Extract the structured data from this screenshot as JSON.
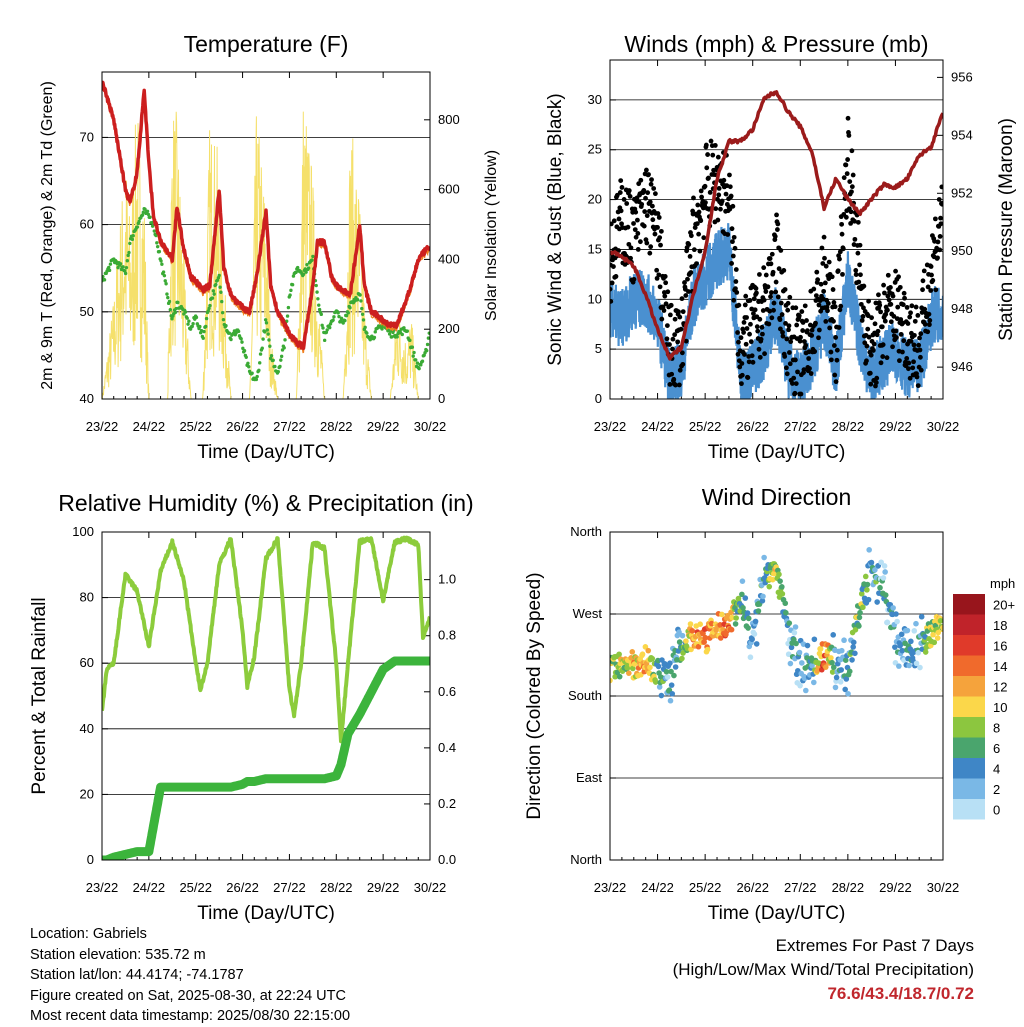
{
  "x_tick_labels": [
    "23/22",
    "24/22",
    "25/22",
    "26/22",
    "27/22",
    "28/22",
    "29/22",
    "30/22"
  ],
  "colors": {
    "temp2m": "#cc1f1f",
    "temp9m": "#f08020",
    "dewpoint": "#3aaa35",
    "solar": "#f5e06b",
    "wind": "#4a90d0",
    "gust": "#000000",
    "pressure": "#9b1b1b",
    "humidity": "#8ccc3c",
    "precip": "#3cb43c"
  },
  "chart_data": [
    {
      "id": "temperature",
      "type": "line",
      "title": "Temperature (F)",
      "xlabel": "Time (Day/UTC)",
      "ylabel": "2m & 9m T (Red, Orange) & 2m Td (Green)",
      "y2label": "Solar Insolation (Yellow)",
      "ylim": [
        40,
        77.5
      ],
      "yticks": [
        40,
        50,
        60,
        70
      ],
      "y2lim": [
        0,
        937
      ],
      "y2ticks": [
        0,
        200,
        400,
        600,
        800
      ],
      "x": [
        0,
        0.25,
        0.5,
        0.6,
        0.75,
        0.9,
        1.0,
        1.1,
        1.25,
        1.4,
        1.5,
        1.6,
        1.75,
        1.9,
        2.0,
        2.15,
        2.3,
        2.5,
        2.6,
        2.75,
        2.9,
        3.0,
        3.15,
        3.3,
        3.5,
        3.6,
        3.75,
        3.9,
        4.0,
        4.15,
        4.3,
        4.5,
        4.6,
        4.75,
        4.9,
        5.0,
        5.15,
        5.3,
        5.5,
        5.6,
        5.75,
        5.9,
        6.0,
        6.15,
        6.3,
        6.5,
        6.6,
        6.75,
        6.9,
        7.0
      ],
      "series": [
        {
          "name": "2m T",
          "values": [
            76.6,
            72,
            64,
            62.5,
            66,
            75.5,
            67,
            61,
            58,
            57,
            56,
            62,
            57,
            54,
            53.5,
            52.5,
            53,
            64,
            55,
            52,
            51,
            50.5,
            50,
            54,
            61.5,
            53,
            50,
            48.5,
            47.5,
            46.5,
            46,
            53,
            58,
            58,
            54,
            53,
            52.5,
            52,
            60,
            53,
            50,
            49.5,
            49,
            48.5,
            48.5,
            51.5,
            53,
            56,
            57,
            57.5
          ]
        },
        {
          "name": "2m Td",
          "values": [
            53.5,
            56,
            54.5,
            58,
            60,
            61.5,
            61,
            60,
            56,
            52,
            49,
            51,
            50,
            48,
            49.5,
            47,
            51,
            54,
            49,
            47,
            48,
            46,
            43,
            42,
            49,
            45,
            43,
            46.5,
            52,
            55,
            54.5,
            56,
            52,
            47,
            49,
            50,
            48.5,
            51,
            52,
            48,
            47,
            48,
            48.5,
            47.5,
            47.5,
            48,
            46,
            43.5,
            45,
            48
          ]
        },
        {
          "name": "Solar",
          "values": [
            0,
            300,
            720,
            520,
            880,
            600,
            0,
            0,
            0,
            0,
            870,
            820,
            400,
            0,
            0,
            0,
            820,
            700,
            380,
            0,
            0,
            0,
            0,
            850,
            580,
            200,
            0,
            0,
            0,
            0,
            920,
            650,
            350,
            0,
            0,
            0,
            0,
            800,
            610,
            290,
            0,
            0,
            0,
            0,
            280,
            170,
            250,
            0,
            0,
            0
          ]
        }
      ]
    },
    {
      "id": "winds",
      "type": "scatter",
      "title": "Winds (mph) & Pressure (mb)",
      "xlabel": "Time (Day/UTC)",
      "ylabel": "Sonic Wind & Gust (Blue, Black)",
      "y2label": "Station Pressure (Maroon)",
      "ylim": [
        0,
        34
      ],
      "yticks": [
        0,
        5,
        10,
        15,
        20,
        25,
        30
      ],
      "y2lim": [
        944.9,
        956.6
      ],
      "y2ticks": [
        946,
        948,
        950,
        952,
        954,
        956
      ],
      "x": [
        0,
        0.25,
        0.5,
        0.75,
        1.0,
        1.25,
        1.5,
        1.75,
        2.0,
        2.25,
        2.5,
        2.75,
        3.0,
        3.25,
        3.5,
        3.75,
        4.0,
        4.25,
        4.5,
        4.75,
        5.0,
        5.25,
        5.5,
        5.75,
        6.0,
        6.25,
        6.5,
        6.75,
        7.0
      ],
      "series": [
        {
          "name": "Sonic Wind",
          "values": [
            9,
            8,
            10,
            10,
            8,
            2,
            3,
            10,
            12,
            14,
            15,
            2,
            3,
            5,
            9,
            3,
            2,
            4,
            8,
            3,
            12,
            6,
            2,
            4,
            5,
            3,
            3,
            8,
            9
          ]
        },
        {
          "name": "Gust",
          "values": [
            14,
            18,
            16,
            20,
            16,
            5,
            6,
            16,
            21,
            22,
            20,
            5,
            7,
            9,
            14,
            6,
            4,
            7,
            12,
            6,
            25,
            12,
            4,
            8,
            9,
            7,
            5,
            13,
            19
          ]
        },
        {
          "name": "Pressure",
          "values": [
            950,
            949.8,
            949.5,
            948.5,
            947.3,
            946.3,
            946.7,
            948.5,
            950,
            952.5,
            953.8,
            953.8,
            954.2,
            955.3,
            955.5,
            954.8,
            954.3,
            953.4,
            951.5,
            952.5,
            951.8,
            951.3,
            951.8,
            952.3,
            952.2,
            952.5,
            953.3,
            953.6,
            954.8
          ]
        }
      ]
    },
    {
      "id": "humidity",
      "type": "line",
      "title": "Relative Humidity (%) & Precipitation (in)",
      "xlabel": "Time (Day/UTC)",
      "ylabel": "Percent & Total Rainfall",
      "ylim": [
        0,
        100
      ],
      "yticks": [
        0,
        20,
        40,
        60,
        80,
        100
      ],
      "y2lim": [
        0,
        1.17
      ],
      "y2ticks": [
        0.0,
        0.2,
        0.4,
        0.6,
        0.8,
        1.0
      ],
      "x": [
        0,
        0.1,
        0.25,
        0.5,
        0.75,
        1.0,
        1.25,
        1.5,
        1.75,
        2.0,
        2.1,
        2.25,
        2.5,
        2.75,
        3.0,
        3.1,
        3.25,
        3.5,
        3.75,
        4.0,
        4.1,
        4.25,
        4.5,
        4.75,
        5.0,
        5.1,
        5.25,
        5.5,
        5.75,
        6.0,
        6.25,
        6.5,
        6.75,
        6.85,
        7.0
      ],
      "series": [
        {
          "name": "Relative Humidity",
          "values": [
            45,
            58,
            60,
            87,
            82,
            65,
            88,
            97,
            85,
            60,
            52,
            60,
            90,
            98,
            70,
            53,
            62,
            92,
            98,
            52,
            44,
            60,
            97,
            95,
            60,
            36,
            60,
            97,
            98,
            79,
            97,
            98,
            96,
            68,
            74
          ]
        },
        {
          "name": "Total Precipitation",
          "values": [
            0,
            0,
            0.01,
            0.02,
            0.03,
            0.03,
            0.26,
            0.26,
            0.26,
            0.26,
            0.26,
            0.26,
            0.26,
            0.26,
            0.27,
            0.28,
            0.28,
            0.29,
            0.29,
            0.29,
            0.29,
            0.29,
            0.29,
            0.29,
            0.3,
            0.34,
            0.45,
            0.52,
            0.6,
            0.68,
            0.71,
            0.71,
            0.71,
            0.71,
            0.71
          ]
        }
      ]
    },
    {
      "id": "direction",
      "type": "scatter",
      "title": "Wind Direction",
      "xlabel": "Time (Day/UTC)",
      "ylabel": "Direction (Colored By Speed)",
      "ylim": [
        0,
        360
      ],
      "yticks": [
        0,
        90,
        180,
        270,
        360
      ],
      "ytick_labels": [
        "North",
        "East",
        "South",
        "West",
        "North"
      ],
      "x": [
        0,
        0.25,
        0.5,
        0.75,
        1.0,
        1.25,
        1.5,
        1.75,
        2.0,
        2.25,
        2.5,
        2.75,
        3.0,
        3.25,
        3.5,
        3.75,
        4.0,
        4.25,
        4.5,
        4.75,
        5.0,
        5.25,
        5.5,
        5.75,
        6.0,
        6.25,
        6.5,
        6.75,
        7.0
      ],
      "series": [
        {
          "name": "Direction",
          "values": [
            208,
            212,
            215,
            220,
            205,
            200,
            235,
            248,
            242,
            255,
            260,
            285,
            240,
            310,
            320,
            250,
            212,
            215,
            225,
            215,
            210,
            275,
            320,
            300,
            245,
            230,
            235,
            250,
            260
          ]
        },
        {
          "name": "Speed",
          "values": [
            8,
            9,
            10,
            12,
            6,
            3,
            5,
            12,
            13,
            12,
            14,
            5,
            3,
            5,
            9,
            3,
            3,
            4,
            16,
            3,
            4,
            7,
            5,
            3,
            3,
            4,
            3,
            9,
            10
          ]
        }
      ],
      "legend": {
        "title": "mph",
        "labels": [
          "0",
          "2",
          "4",
          "6",
          "8",
          "10",
          "12",
          "14",
          "16",
          "18",
          "20+"
        ],
        "colors": [
          "#b8e0f5",
          "#7ab8e6",
          "#3f86c6",
          "#4aa56d",
          "#8cc63f",
          "#fbd74a",
          "#f5a33c",
          "#f06a2c",
          "#e03a2a",
          "#c0232a",
          "#98151c"
        ],
        "placement": "right"
      }
    }
  ],
  "footer": {
    "location": "Location: Gabriels",
    "elevation": "Station elevation: 535.72 m",
    "latlon": "Station lat/lon: 44.4174; -74.1787",
    "created": "Figure created on Sat, 2025-08-30, at 22:24 UTC",
    "recent": "Most recent data timestamp: 2025/08/30 22:15:00"
  },
  "extremes": {
    "title": "Extremes For Past 7 Days",
    "subtitle": "(High/Low/Max Wind/Total Precipitation)",
    "values": "76.6/43.4/18.7/0.72"
  }
}
